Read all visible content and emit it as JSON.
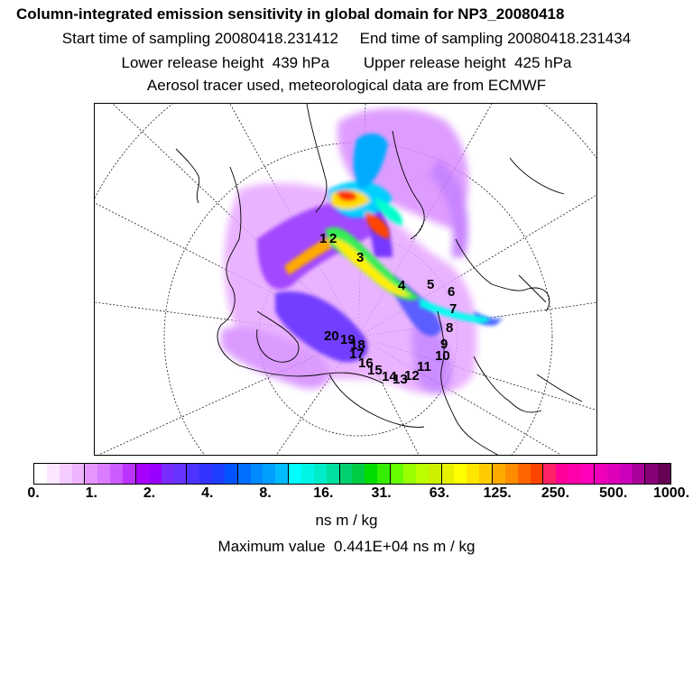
{
  "header": {
    "title": "Column-integrated emission sensitivity in global domain for NP3_20080418",
    "line1": "Start time of sampling 20080418.231412     End time of sampling 20080418.231434",
    "line2": "Lower release height  439 hPa        Upper release height  425 hPa",
    "line3": "Aerosol tracer used, meteorological data are from ECMWF"
  },
  "map": {
    "projection": "polar stereographic (North Pole)",
    "point_labels": [
      "1",
      "2",
      "3",
      "4",
      "5",
      "6",
      "7",
      "8",
      "9",
      "10",
      "11",
      "12",
      "13",
      "14",
      "15",
      "16",
      "17",
      "18",
      "19",
      "20"
    ]
  },
  "colorbar": {
    "colors": [
      "#ffffff",
      "#fbe7ff",
      "#f4ccff",
      "#eeb4ff",
      "#e596ff",
      "#d97cff",
      "#cc5cff",
      "#bb33ff",
      "#a800ff",
      "#9a00ff",
      "#7a2cff",
      "#6633ff",
      "#4d33ff",
      "#3333ff",
      "#1f3dff",
      "#0055ff",
      "#006eff",
      "#0088ff",
      "#00a0ff",
      "#00bbff",
      "#00ffff",
      "#00f5e6",
      "#00ecc8",
      "#00e0a0",
      "#00d070",
      "#00cc44",
      "#00dd00",
      "#33ee00",
      "#66ff00",
      "#99ff00",
      "#bbff00",
      "#ccf000",
      "#e6f000",
      "#ffff00",
      "#ffe600",
      "#ffcc00",
      "#ffaa00",
      "#ff8c00",
      "#ff6600",
      "#ff4400",
      "#ff2266",
      "#ff0099",
      "#ff00aa",
      "#ff00bb",
      "#ee00bb",
      "#dd00bb",
      "#cc00bb",
      "#aa0099",
      "#880077",
      "#660055"
    ],
    "tick_labels": [
      "0.",
      "1.",
      "2.",
      "4.",
      "8.",
      "16.",
      "31.",
      "63.",
      "125.",
      "250.",
      "500.",
      "1000."
    ],
    "units": "ns m / kg"
  },
  "max_value_text": "Maximum value  0.441E+04 ns m / kg"
}
